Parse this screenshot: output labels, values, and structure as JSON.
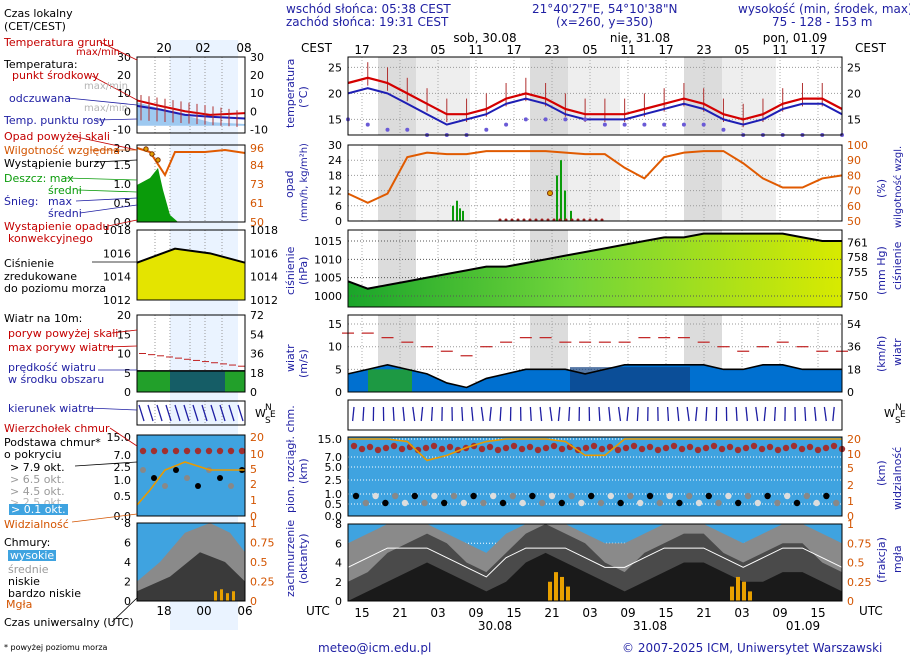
{
  "header": {
    "sunrise": "wschód słońca: 05:38 CEST",
    "sunset": "zachód słońca: 19:31 CEST",
    "coords": "21°40'27\"E, 54°10'38\"N",
    "grid": "(x=260, y=350)",
    "elev_title": "wysokość (min, środek, max)",
    "elev_values": "75 - 128 - 153 m"
  },
  "footer": {
    "email": "meteo@icm.edu.pl",
    "copyright": "© 2007-2025 ICM, Uniwersytet Warszawski",
    "note": "* powyżej poziomu morza"
  },
  "legend": {
    "local_time": "Czas lokalny",
    "local_time2": "(CET/CEST)",
    "ground_temp": "Temperatura gruntu",
    "maxmin": "max/min",
    "temperature": "Temperatura:",
    "mid_point": "punkt środkowy",
    "maxmin2": "max/min",
    "feels": "odczuwana",
    "maxmin3": "max/min",
    "dew": "Temp. punktu rosy",
    "precip_above": "Opad powyżej skali",
    "humidity": "Wilgotność względna",
    "storm": "Wystąpienie burzy",
    "rain_max": "Deszcz: max",
    "rain_avg": "średni",
    "snow_max": "Śnieg:",
    "snow_max2": "max",
    "snow_avg": "średni",
    "conv1": "Wystąpienie opadu",
    "conv2": "konwekcyjnego",
    "press1": "Ciśnienie",
    "press2": "zredukowane",
    "press3": "do poziomu morza",
    "wind_title": "Wiatr na 10m:",
    "gust_above": "poryw powyżej skali",
    "gust_max": "max porywy wiatru",
    "wind_avg1": "prędkość wiatru",
    "wind_avg2": "w środku obszaru",
    "wind_dir": "kierunek wiatru",
    "cloud_top": "Wierzchołek chmur",
    "cloud_base1": "Podstawa chmur*",
    "cloud_base2": "o pokryciu",
    "okt79": "> 7.9 okt.",
    "okt65": "> 6.5 okt.",
    "okt45": "> 4.5 okt.",
    "okt25": "> 2.5 okt.",
    "okt01": "> 0.1 okt.",
    "visibility": "Widzialność",
    "clouds": "Chmury:",
    "high": "wysokie",
    "mid": "średnie",
    "low": "niskie",
    "vlow": "bardzo niskie",
    "fog": "Mgła",
    "utc": "Czas uniwersalny (UTC)"
  },
  "labels": {
    "cest": "CEST",
    "utc": "UTC",
    "temp_left": "temperatura",
    "temp_unit": "(°C)",
    "precip_left": "opad",
    "precip_unit": "(mm/h, kg/m²h)",
    "hum_right": "wilgotność wzgl.",
    "hum_unit": "(%)",
    "press_left": "ciśnienie",
    "press_unit": "(hPa)",
    "press_right": "ciśnienie",
    "press_runit": "(mm Hg)",
    "wind_left": "wiatr",
    "wind_unit": "(m/s)",
    "wind_right": "wiatr",
    "wind_runit": "(km/h)",
    "cloud_left1": "pion. rozciągł. chm.",
    "cloud_left2": "(km)",
    "vis_right": "widzialność",
    "vis_unit": "(km)",
    "cover_left1": "zachmurzenie",
    "cover_left2": "(oktanty)",
    "fog_right": "mgła",
    "fog_unit": "(frakcja)"
  },
  "chart_data": {
    "type": "meteogram",
    "days": [
      "sob, 30.08",
      "nie, 31.08",
      "pon, 01.09"
    ],
    "days_utc": [
      "30.08",
      "31.08",
      "01.09"
    ],
    "cest_ticks": [
      "17",
      "23",
      "05",
      "11",
      "17",
      "23",
      "05",
      "11",
      "17",
      "23",
      "05",
      "11",
      "17"
    ],
    "utc_ticks": [
      "15",
      "21",
      "03",
      "09",
      "15",
      "21",
      "03",
      "09",
      "15",
      "21",
      "03",
      "09",
      "15"
    ],
    "hours_utc": [
      15,
      18,
      21,
      0,
      3,
      6,
      9,
      12,
      15,
      18,
      21,
      0,
      3,
      6,
      9,
      12,
      15,
      18,
      21,
      0,
      3,
      6,
      9,
      12,
      15,
      18
    ],
    "temperature": [
      22,
      23,
      22,
      20,
      18,
      16,
      16,
      17,
      19,
      20,
      19,
      17,
      16,
      16,
      16,
      17,
      18,
      19,
      18,
      16,
      15,
      16,
      18,
      19,
      19,
      17
    ],
    "feels": [
      20,
      21,
      20,
      18,
      16,
      14,
      15,
      16,
      18,
      19,
      18,
      16,
      15,
      15,
      15,
      16,
      17,
      18,
      17,
      15,
      14,
      15,
      17,
      18,
      18,
      16
    ],
    "dew": [
      15,
      14,
      13,
      13,
      12,
      12,
      12,
      13,
      14,
      15,
      15,
      15,
      15,
      14,
      14,
      14,
      14,
      14,
      14,
      13,
      12,
      12,
      12,
      12,
      12,
      12
    ],
    "humidity": [
      68,
      62,
      68,
      92,
      95,
      94,
      94,
      96,
      96,
      96,
      96,
      95,
      94,
      94,
      85,
      78,
      92,
      95,
      96,
      96,
      88,
      78,
      72,
      72,
      78,
      80
    ],
    "pressure": [
      1004,
      1002,
      1003,
      1004,
      1005,
      1006,
      1007,
      1008,
      1008,
      1009,
      1010,
      1011,
      1012,
      1013,
      1014,
      1015,
      1016,
      1016,
      1017,
      1017,
      1017,
      1017,
      1017,
      1016,
      1015,
      1015
    ],
    "wind_speed": [
      4,
      5,
      6,
      5,
      4,
      2,
      1,
      3,
      4,
      5,
      5,
      5,
      4,
      5,
      6,
      6,
      6,
      6,
      6,
      5,
      5,
      6,
      6,
      5,
      5,
      5
    ],
    "wind_gust": [
      13,
      13,
      12,
      11,
      10,
      9,
      8,
      10,
      11,
      12,
      12,
      11,
      11,
      11,
      11,
      12,
      12,
      12,
      11,
      10,
      9,
      10,
      11,
      10,
      9,
      9
    ],
    "visibility": [
      20,
      20,
      20,
      18,
      8,
      10,
      14,
      18,
      20,
      20,
      20,
      18,
      10,
      10,
      20,
      20,
      20,
      20,
      20,
      20,
      20,
      20,
      20,
      20,
      20,
      20
    ],
    "temp_axis": [
      15,
      20,
      25
    ],
    "temp_range": [
      12,
      27
    ],
    "precip_axis": [
      0,
      6,
      12,
      18,
      24,
      30
    ],
    "hum_axis": [
      50,
      60,
      70,
      80,
      90,
      100
    ],
    "press_axis": [
      1000,
      1005,
      1010,
      1015
    ],
    "press_range": [
      997,
      1018
    ],
    "press_mmhg": [
      750,
      755,
      758,
      761
    ],
    "wind_axis": [
      0,
      5,
      10,
      15
    ],
    "wind_kmh": [
      0,
      18,
      36,
      54
    ],
    "cloud_axis": [
      0.0,
      0.5,
      1.0,
      2.5,
      5.0,
      7.0,
      15.0
    ],
    "vis_axis": [
      0,
      1,
      2,
      5,
      10,
      20
    ],
    "cover_axis": [
      0,
      2,
      4,
      6,
      8
    ],
    "fog_axis": [
      0,
      0.25,
      0.5,
      0.75,
      1
    ],
    "small_ticks_cest": [
      "20",
      "02",
      "08"
    ],
    "small_ticks_utc": [
      "18",
      "00",
      "06"
    ],
    "small_temp_axis": [
      -10,
      -5,
      0,
      5,
      10,
      15,
      20,
      25,
      30
    ],
    "small_hum_axis": [
      50,
      61,
      73,
      84,
      96
    ],
    "small_precip_axis": [
      0,
      0.5,
      1.0,
      1.5,
      2.0
    ],
    "small_press_axis": [
      1012,
      1014,
      1016,
      1018
    ],
    "small_wind_axis": [
      0,
      5,
      10,
      15,
      20
    ],
    "small_wind_kmh": [
      0,
      18,
      36,
      54,
      72
    ],
    "small_cloud_axis": [
      0.0,
      0.5,
      1.0,
      2.5,
      7.0,
      15.0
    ],
    "small_vis_axis": [
      0,
      1,
      2,
      5,
      10,
      20
    ],
    "small_cover_axis": [
      0,
      2,
      4,
      6,
      8
    ],
    "small_fog_axis": [
      0,
      0.25,
      0.5,
      0.75,
      1
    ]
  },
  "colors": {
    "temp": "#d40000",
    "feels": "#1e1eb4",
    "humidity": "#e05a00",
    "pressure_fill": "#3cd23c",
    "pressure_fill2": "#d8e800",
    "wind_fill": "#0070d0",
    "wind_dark": "#104080",
    "gust": "#c02020",
    "sky": "#3fa3e0",
    "night": "#dcdcdc",
    "visibility": "#e89a00"
  }
}
